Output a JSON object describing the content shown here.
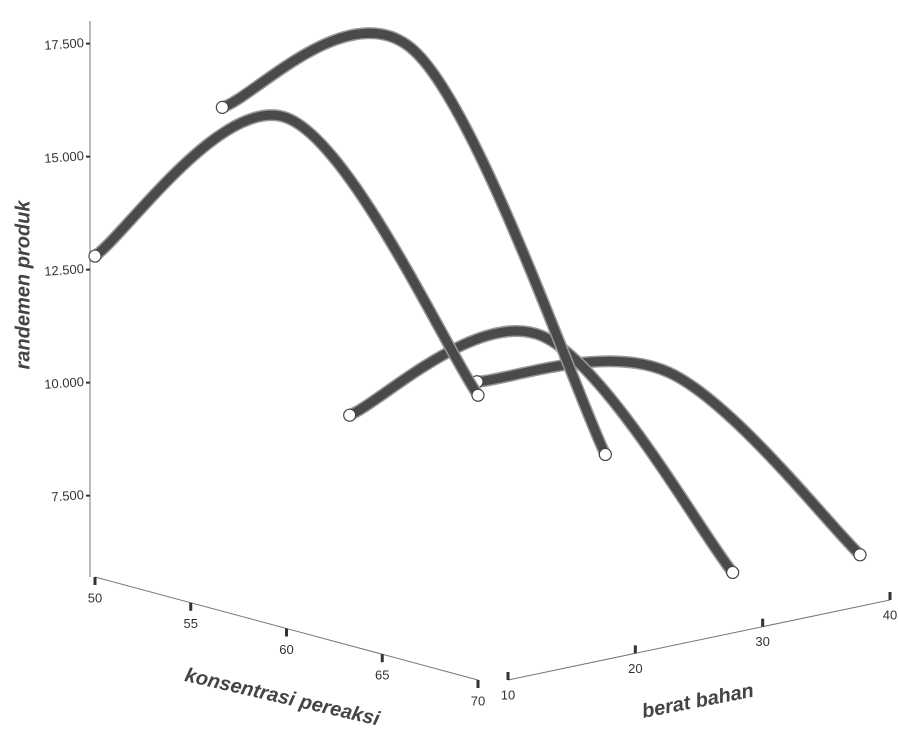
{
  "chart_data": {
    "type": "line3d",
    "y_label": "randemen produk",
    "x_label": "konsentrasi pereaksi",
    "z_label": "berat bahan",
    "x": [
      50,
      60,
      70
    ],
    "series": [
      {
        "z": 10,
        "values": [
          12.8,
          17.0,
          12.0
        ]
      },
      {
        "z": 20,
        "values": [
          15.5,
          17.9,
          10.1
        ]
      },
      {
        "z": 30,
        "values": [
          8.1,
          11.0,
          6.9
        ]
      },
      {
        "z": 40,
        "values": [
          8.25,
          9.6,
          6.7
        ]
      }
    ],
    "color": "#4a4a4a",
    "xlim": [
      50,
      70
    ],
    "xticks": [
      50,
      55,
      60,
      65,
      70
    ],
    "zlim": [
      10,
      40
    ],
    "zticks": [
      10,
      20,
      30,
      40
    ],
    "ylim": [
      5.7,
      18
    ],
    "yticks": [
      {
        "value": 7.5,
        "label": "7.500"
      },
      {
        "value": 10,
        "label": "10.000"
      },
      {
        "value": 12.5,
        "label": "12.500"
      },
      {
        "value": 15,
        "label": "15.000"
      },
      {
        "value": 17.5,
        "label": "17.500"
      }
    ]
  }
}
